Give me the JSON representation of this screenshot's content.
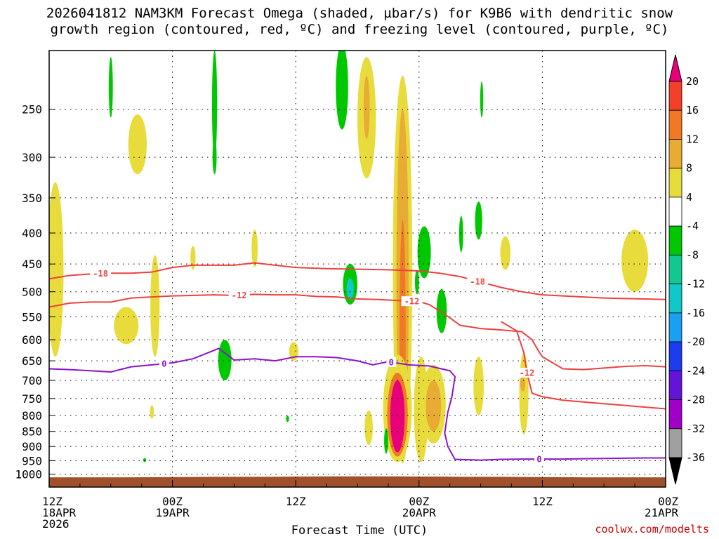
{
  "header": {
    "title_line1": "2026041812 NAM3KM Forecast Omega (shaded, µbar/s) for K9B6 with dendritic snow",
    "title_line2": "growth region (contoured, red, ºC) and freezing level (contoured, purple, ºC)"
  },
  "footer": {
    "credit": "coolwx.com/modelts"
  },
  "chart_data": {
    "type": "heatmap",
    "title": "2026041812 NAM3KM Forecast Omega (shaded, µbar/s) for K9B6 with dendritic snow growth region (contoured, red, ºC) and freezing level (contoured, purple, ºC)",
    "xlabel": "Forecast Time (UTC)",
    "ylabel": "",
    "x_range_hours": [
      0,
      60
    ],
    "y_range_hPa": [
      1050,
      200
    ],
    "y_scale": "log-pressure",
    "grid": true,
    "y_ticks": [
      250,
      300,
      350,
      400,
      450,
      500,
      550,
      600,
      650,
      700,
      750,
      800,
      850,
      900,
      950,
      1000
    ],
    "x_ticks": [
      {
        "hour": 0,
        "label1": "12Z",
        "label2": "18APR",
        "label3": "2026"
      },
      {
        "hour": 12,
        "label1": "00Z",
        "label2": "19APR",
        "label3": ""
      },
      {
        "hour": 24,
        "label1": "12Z",
        "label2": "",
        "label3": ""
      },
      {
        "hour": 36,
        "label1": "00Z",
        "label2": "20APR",
        "label3": ""
      },
      {
        "hour": 48,
        "label1": "12Z",
        "label2": "",
        "label3": ""
      },
      {
        "hour": 60,
        "label1": "00Z",
        "label2": "21APR",
        "label3": ""
      }
    ],
    "colorbar": {
      "labels": [
        "20",
        "16",
        "12",
        "8",
        "4",
        "-4",
        "-8",
        "-12",
        "-16",
        "-20",
        "-24",
        "-28",
        "-32",
        "-36"
      ],
      "bins": [
        {
          "lo": 20,
          "hi": 99,
          "color": "#e8007a"
        },
        {
          "lo": 16,
          "hi": 20,
          "color": "#f2402a"
        },
        {
          "lo": 12,
          "hi": 16,
          "color": "#f07a24"
        },
        {
          "lo": 8,
          "hi": 12,
          "color": "#e8ac34"
        },
        {
          "lo": 4,
          "hi": 8,
          "color": "#e8dc3c"
        },
        {
          "lo": -4,
          "hi": 4,
          "color": "#ffffff"
        },
        {
          "lo": -8,
          "hi": -4,
          "color": "#00c800"
        },
        {
          "lo": -12,
          "hi": -8,
          "color": "#10c890"
        },
        {
          "lo": -16,
          "hi": -12,
          "color": "#10c8c8"
        },
        {
          "lo": -20,
          "hi": -16,
          "color": "#1aa0f0"
        },
        {
          "lo": -24,
          "hi": -20,
          "color": "#1c3cf0"
        },
        {
          "lo": -28,
          "hi": -24,
          "color": "#6414d8"
        },
        {
          "lo": -32,
          "hi": -28,
          "color": "#a000c8"
        },
        {
          "lo": -36,
          "hi": -32,
          "color": "#a0a0a0"
        },
        {
          "lo": -99,
          "hi": -36,
          "color": "#000000"
        }
      ]
    },
    "omega_regions": [
      {
        "hour": 0.6,
        "p_top": 330,
        "p_bot": 640,
        "hour_width": 1.6,
        "value": 5
      },
      {
        "hour": 8.6,
        "p_top": 255,
        "p_bot": 320,
        "hour_width": 1.8,
        "value": 5
      },
      {
        "hour": 7.5,
        "p_top": 530,
        "p_bot": 610,
        "hour_width": 2.4,
        "value": 5
      },
      {
        "hour": 10.3,
        "p_top": 435,
        "p_bot": 640,
        "hour_width": 0.9,
        "value": 5
      },
      {
        "hour": 14.0,
        "p_top": 420,
        "p_bot": 460,
        "hour_width": 0.5,
        "value": 5
      },
      {
        "hour": 20.0,
        "p_top": 395,
        "p_bot": 455,
        "hour_width": 0.6,
        "value": 5
      },
      {
        "hour": 23.8,
        "p_top": 605,
        "p_bot": 650,
        "hour_width": 0.9,
        "value": 5
      },
      {
        "hour": 10.0,
        "p_top": 770,
        "p_bot": 810,
        "hour_width": 0.4,
        "value": 5
      },
      {
        "hour": 30.9,
        "p_top": 205,
        "p_bot": 325,
        "hour_width": 1.8,
        "value": 6
      },
      {
        "hour": 30.9,
        "p_top": 220,
        "p_bot": 280,
        "hour_width": 0.6,
        "value": 10
      },
      {
        "hour": 34.4,
        "p_top": 220,
        "p_bot": 960,
        "hour_width": 1.9,
        "value": 6
      },
      {
        "hour": 34.4,
        "p_top": 250,
        "p_bot": 940,
        "hour_width": 1.2,
        "value": 10
      },
      {
        "hour": 34.4,
        "p_top": 380,
        "p_bot": 910,
        "hour_width": 0.6,
        "value": 14
      },
      {
        "hour": 33.9,
        "p_top": 635,
        "p_bot": 955,
        "hour_width": 2.8,
        "value": 6
      },
      {
        "hour": 33.9,
        "p_top": 680,
        "p_bot": 935,
        "hour_width": 2.0,
        "value": 14
      },
      {
        "hour": 33.9,
        "p_top": 700,
        "p_bot": 920,
        "hour_width": 1.4,
        "value": 22
      },
      {
        "hour": 31.1,
        "p_top": 785,
        "p_bot": 895,
        "hour_width": 0.8,
        "value": 6
      },
      {
        "hour": 36.2,
        "p_top": 640,
        "p_bot": 955,
        "hour_width": 1.4,
        "value": 5
      },
      {
        "hour": 37.4,
        "p_top": 660,
        "p_bot": 890,
        "hour_width": 2.4,
        "value": 6
      },
      {
        "hour": 37.4,
        "p_top": 700,
        "p_bot": 850,
        "hour_width": 1.5,
        "value": 10
      },
      {
        "hour": 41.8,
        "p_top": 640,
        "p_bot": 800,
        "hour_width": 1.0,
        "value": 5
      },
      {
        "hour": 46.2,
        "p_top": 630,
        "p_bot": 860,
        "hour_width": 0.9,
        "value": 5
      },
      {
        "hour": 46.1,
        "p_top": 690,
        "p_bot": 730,
        "hour_width": 0.5,
        "value": 10
      },
      {
        "hour": 44.4,
        "p_top": 405,
        "p_bot": 460,
        "hour_width": 1.0,
        "value": 5
      },
      {
        "hour": 57.0,
        "p_top": 395,
        "p_bot": 500,
        "hour_width": 2.6,
        "value": 5
      },
      {
        "hour": 6.0,
        "p_top": 205,
        "p_bot": 258,
        "hour_width": 0.4,
        "value": -6
      },
      {
        "hour": 16.1,
        "p_top": 200,
        "p_bot": 300,
        "hour_width": 0.5,
        "value": -6
      },
      {
        "hour": 16.1,
        "p_top": 280,
        "p_bot": 320,
        "hour_width": 0.4,
        "value": -6
      },
      {
        "hour": 17.1,
        "p_top": 600,
        "p_bot": 700,
        "hour_width": 1.3,
        "value": -6
      },
      {
        "hour": 28.5,
        "p_top": 195,
        "p_bot": 270,
        "hour_width": 1.2,
        "value": -6
      },
      {
        "hour": 29.3,
        "p_top": 450,
        "p_bot": 525,
        "hour_width": 1.4,
        "value": -6
      },
      {
        "hour": 29.3,
        "p_top": 475,
        "p_bot": 515,
        "hour_width": 0.7,
        "value": -13
      },
      {
        "hour": 36.5,
        "p_top": 390,
        "p_bot": 475,
        "hour_width": 1.3,
        "value": -6
      },
      {
        "hour": 35.8,
        "p_top": 460,
        "p_bot": 505,
        "hour_width": 0.4,
        "value": -6
      },
      {
        "hour": 38.2,
        "p_top": 495,
        "p_bot": 585,
        "hour_width": 1.0,
        "value": -6
      },
      {
        "hour": 40.1,
        "p_top": 375,
        "p_bot": 430,
        "hour_width": 0.4,
        "value": -6
      },
      {
        "hour": 41.8,
        "p_top": 355,
        "p_bot": 410,
        "hour_width": 0.7,
        "value": -6
      },
      {
        "hour": 42.1,
        "p_top": 225,
        "p_bot": 258,
        "hour_width": 0.3,
        "value": -6
      },
      {
        "hour": 32.8,
        "p_top": 840,
        "p_bot": 925,
        "hour_width": 0.4,
        "value": -6
      },
      {
        "hour": 9.3,
        "p_top": 940,
        "p_bot": 955,
        "hour_width": 0.3,
        "value": -6
      },
      {
        "hour": 23.2,
        "p_top": 800,
        "p_bot": 820,
        "hour_width": 0.3,
        "value": -6
      }
    ],
    "contours": {
      "dendritic": {
        "color": "#f04040",
        "lines": [
          {
            "label": "-18",
            "label_hour": 5.0,
            "x": [
              0,
              2,
              5,
              8,
              10,
              12,
              14,
              16,
              18,
              20,
              22,
              24,
              27,
              30,
              33,
              36,
              38,
              40,
              42,
              44,
              46,
              48,
              50,
              52,
              54,
              56,
              58,
              60
            ],
            "y": [
              476,
              470,
              466,
              466,
              464,
              456,
              452,
              452,
              452,
              448,
              452,
              456,
              458,
              459,
              460,
              462,
              466,
              472,
              482,
              492,
              500,
              506,
              508,
              510,
              512,
              513,
              514,
              515
            ]
          },
          {
            "label": "-18",
            "label_hour": 41.7,
            "x": [
              0,
              2,
              5,
              8,
              10,
              12,
              14,
              16,
              18,
              20,
              22,
              24,
              27,
              30,
              33,
              36,
              38,
              40,
              42,
              44,
              46,
              48,
              50,
              52,
              54,
              56,
              58,
              60
            ],
            "y": [
              476,
              470,
              466,
              466,
              464,
              456,
              452,
              452,
              452,
              448,
              452,
              456,
              458,
              459,
              460,
              462,
              466,
              472,
              482,
              492,
              500,
              506,
              508,
              510,
              512,
              513,
              514,
              515
            ]
          },
          {
            "label": "-12",
            "label_hour": 18.5,
            "x": [
              0,
              2,
              4,
              6,
              8,
              10,
              12,
              14,
              16,
              18,
              20,
              22,
              24,
              26,
              28,
              30,
              32,
              34,
              36,
              37,
              38,
              39,
              40,
              42,
              44,
              46,
              47,
              47.6,
              48,
              50,
              52,
              54,
              56,
              58,
              60
            ],
            "y": [
              530,
              522,
              520,
              520,
              512,
              510,
              508,
              507,
              506,
              507,
              505,
              506,
              506,
              509,
              510,
              514,
              515,
              517,
              519,
              525,
              538,
              552,
              568,
              575,
              578,
              582,
              600,
              625,
              640,
              670,
              672,
              668,
              664,
              662,
              665
            ]
          },
          {
            "label": "-12",
            "label_hour": 35.3,
            "x": [
              0,
              2,
              4,
              6,
              8,
              10,
              12,
              14,
              16,
              18,
              20,
              22,
              24,
              26,
              28,
              30,
              32,
              34,
              36,
              37,
              38,
              39,
              40,
              42,
              44,
              46,
              47,
              47.6,
              48,
              50,
              52,
              54,
              56,
              58,
              60
            ],
            "y": [
              530,
              522,
              520,
              520,
              512,
              510,
              508,
              507,
              506,
              507,
              505,
              506,
              506,
              509,
              510,
              514,
              515,
              517,
              519,
              525,
              538,
              552,
              568,
              575,
              578,
              582,
              600,
              625,
              640,
              670,
              672,
              668,
              664,
              662,
              665
            ]
          },
          {
            "label": "-12",
            "label_hour": 46.5,
            "x": [
              44,
              45.5,
              46.2,
              46.5,
              47,
              48,
              50,
              52,
              54,
              56,
              58,
              60
            ],
            "y": [
              560,
              580,
              630,
              680,
              735,
              745,
              755,
              760,
              765,
              770,
              775,
              780
            ]
          }
        ]
      },
      "freezing": {
        "color": "#8c14c8",
        "lines": [
          {
            "label": "0",
            "label_hour": 11.2,
            "x": [
              0,
              2,
              4,
              6,
              8,
              10,
              12,
              14,
              15.5,
              16.5,
              18,
              20,
              22,
              24,
              26,
              28,
              30,
              31.5,
              33,
              35,
              37,
              39,
              39.5,
              39.2,
              38.8,
              38.5,
              38.8,
              39.5,
              42,
              44,
              46,
              48,
              50,
              52,
              54,
              56,
              58,
              60
            ],
            "y": [
              670,
              672,
              675,
              678,
              665,
              660,
              655,
              645,
              630,
              620,
              648,
              645,
              650,
              640,
              640,
              642,
              650,
              660,
              652,
              660,
              663,
              675,
              690,
              745,
              790,
              855,
              900,
              945,
              948,
              945,
              944,
              944,
              944,
              943,
              942,
              941,
              940,
              940
            ]
          },
          {
            "label": "0",
            "label_hour": 33.3,
            "x": [
              0,
              2,
              4,
              6,
              8,
              10,
              12,
              14,
              15.5,
              16.5,
              18,
              20,
              22,
              24,
              26,
              28,
              30,
              31.5,
              33,
              35,
              37,
              39,
              39.5,
              39.2,
              38.8,
              38.5,
              38.8,
              39.5,
              42,
              44,
              46,
              48,
              50,
              52,
              54,
              56,
              58,
              60
            ],
            "y": [
              670,
              672,
              675,
              678,
              665,
              660,
              655,
              645,
              630,
              620,
              648,
              645,
              650,
              640,
              640,
              642,
              650,
              660,
              652,
              660,
              663,
              675,
              690,
              745,
              790,
              855,
              900,
              945,
              948,
              945,
              944,
              944,
              944,
              943,
              942,
              941,
              940,
              940
            ]
          },
          {
            "label": "0",
            "label_hour": 47.7,
            "x": [
              0,
              2,
              4,
              6,
              8,
              10,
              12,
              14,
              15.5,
              16.5,
              18,
              20,
              22,
              24,
              26,
              28,
              30,
              31.5,
              33,
              35,
              37,
              39,
              39.5,
              39.2,
              38.8,
              38.5,
              38.8,
              39.5,
              42,
              44,
              46,
              48,
              50,
              52,
              54,
              56,
              58,
              60
            ],
            "y": [
              670,
              672,
              675,
              678,
              665,
              660,
              655,
              645,
              630,
              620,
              648,
              645,
              650,
              640,
              640,
              642,
              650,
              660,
              652,
              660,
              663,
              675,
              690,
              745,
              790,
              855,
              900,
              945,
              948,
              945,
              944,
              944,
              944,
              943,
              942,
              941,
              940,
              940
            ]
          }
        ]
      }
    },
    "terrain": {
      "color": "#a0502a",
      "x": [
        0,
        8,
        12,
        16,
        20,
        24,
        28,
        32,
        34,
        36,
        38,
        40,
        44,
        48,
        52,
        56,
        60
      ],
      "surface_hPa": [
        1012,
        1012,
        1011,
        1010,
        1010,
        1009,
        1008,
        1008,
        1008,
        1009,
        1009,
        1010,
        1010,
        1011,
        1012,
        1012,
        1012
      ]
    }
  }
}
